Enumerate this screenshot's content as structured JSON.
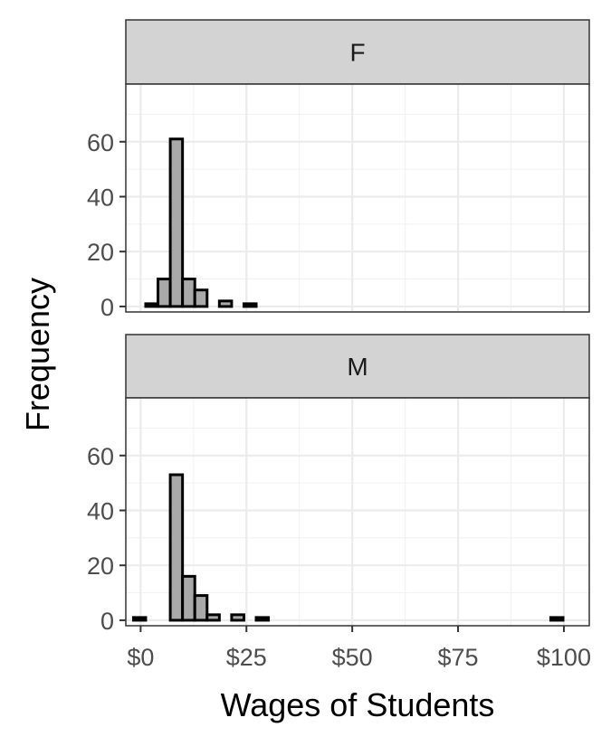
{
  "chart_data": {
    "type": "bar",
    "subtype": "histogram",
    "facet_layout": "vertical",
    "xlabel": "Wages of Students",
    "ylabel": "Frequency",
    "xlim": [
      -3.5,
      106
    ],
    "ylim": [
      -2,
      81
    ],
    "x_ticks": [
      {
        "value": 0,
        "label": "$0"
      },
      {
        "value": 25,
        "label": "$25"
      },
      {
        "value": 50,
        "label": "$50"
      },
      {
        "value": 75,
        "label": "$75"
      },
      {
        "value": 100,
        "label": "$100"
      }
    ],
    "y_ticks": [
      {
        "value": 0,
        "label": "0"
      },
      {
        "value": 20,
        "label": "20"
      },
      {
        "value": 40,
        "label": "40"
      },
      {
        "value": 60,
        "label": "60"
      }
    ],
    "bin_edges": [
      -1.7,
      1.2,
      4.1,
      7.0,
      9.9,
      12.8,
      15.7,
      18.6,
      21.5,
      24.4,
      27.3,
      30.2,
      33.1,
      36.0,
      38.9,
      41.8,
      44.7,
      47.6,
      50.5,
      53.4,
      56.3,
      59.2,
      62.1,
      65.0,
      67.9,
      70.8,
      73.7,
      76.6,
      79.5,
      82.4,
      85.3,
      88.2,
      91.1,
      94.0,
      96.9,
      99.8
    ],
    "panels": [
      {
        "label": "F",
        "counts": [
          0,
          1,
          10,
          61,
          10,
          6,
          0,
          2,
          0,
          1,
          0,
          0,
          0,
          0,
          0,
          0,
          0,
          0,
          0,
          0,
          0,
          0,
          0,
          0,
          0,
          0,
          0,
          0,
          0,
          0,
          0,
          0,
          0,
          0,
          0
        ]
      },
      {
        "label": "M",
        "counts": [
          1,
          0,
          0,
          53,
          16,
          9,
          2,
          0,
          2,
          0,
          1,
          0,
          0,
          0,
          0,
          0,
          0,
          0,
          0,
          0,
          0,
          0,
          0,
          0,
          0,
          0,
          0,
          0,
          0,
          0,
          0,
          0,
          0,
          0,
          1
        ]
      }
    ],
    "grid": true,
    "legend": "none",
    "colors": {
      "bar_fill": "#a9a9a9",
      "bar_outline": "#000000",
      "strip_fill": "#d3d3d3"
    }
  }
}
